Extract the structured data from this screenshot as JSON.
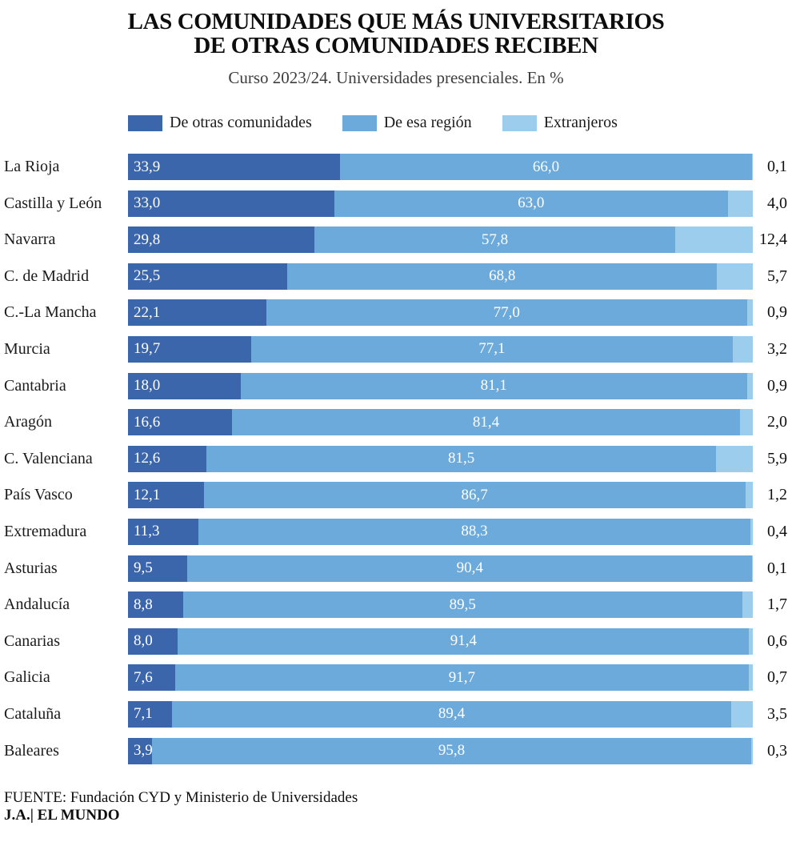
{
  "header": {
    "title_line1": "LAS COMUNIDADES QUE MÁS UNIVERSITARIOS",
    "title_line2": "DE OTRAS COMUNIDADES RECIBEN",
    "subtitle": "Curso 2023/24. Universidades presenciales. En %"
  },
  "chart_data": {
    "type": "bar",
    "stacked": true,
    "orientation": "horizontal",
    "unit": "%",
    "xlim": [
      0,
      100
    ],
    "decimal_separator": ",",
    "legend_position": "top",
    "categories": [
      "La Rioja",
      "Castilla y León",
      "Navarra",
      "C. de Madrid",
      "C.-La Mancha",
      "Murcia",
      "Cantabria",
      "Aragón",
      "C. Valenciana",
      "País Vasco",
      "Extremadura",
      "Asturias",
      "Andalucía",
      "Canarias",
      "Galicia",
      "Cataluña",
      "Baleares"
    ],
    "series": [
      {
        "key": "otras-comunidades",
        "name": "De otras comunidades",
        "color": "#3B66AC",
        "label_style": "inside-left",
        "values": [
          33.9,
          33.0,
          29.8,
          25.5,
          22.1,
          19.7,
          18.0,
          16.6,
          12.6,
          12.1,
          11.3,
          9.5,
          8.8,
          8.0,
          7.6,
          7.1,
          3.9
        ]
      },
      {
        "key": "esa-region",
        "name": "De esa región",
        "color": "#6CAADB",
        "label_style": "inside-center",
        "values": [
          66.0,
          63.0,
          57.8,
          68.8,
          77.0,
          77.1,
          81.1,
          81.4,
          81.5,
          86.7,
          88.3,
          90.4,
          89.5,
          91.4,
          91.7,
          89.4,
          95.8
        ]
      },
      {
        "key": "extranjeros",
        "name": "Extranjeros",
        "color": "#9DCDEC",
        "label_style": "outside-right",
        "values": [
          0.1,
          4.0,
          12.4,
          5.7,
          0.9,
          3.2,
          0.9,
          2.0,
          5.9,
          1.2,
          0.4,
          0.1,
          1.7,
          0.6,
          0.7,
          3.5,
          0.3
        ]
      }
    ]
  },
  "footer": {
    "source": "FUENTE: Fundación CYD y Ministerio de Universidades",
    "credit": "J.A.| EL MUNDO"
  }
}
